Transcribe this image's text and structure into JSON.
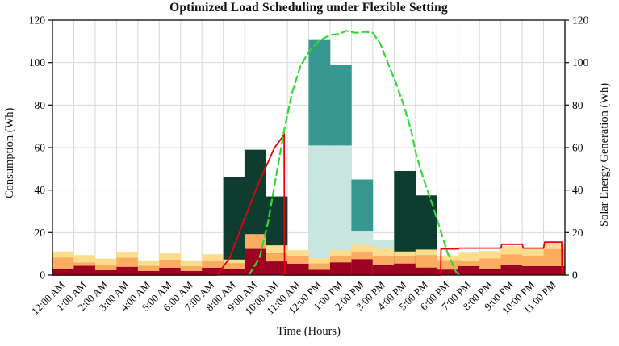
{
  "title": "Optimized Load Scheduling under Flexible Setting",
  "axes": {
    "left_label": "Consumption (Wh)",
    "right_label": "Solar Energy Generation (Wh)",
    "x_label": "Time (Hours)",
    "y_ticks": [
      0,
      20,
      40,
      60,
      80,
      100,
      120
    ],
    "y_range": [
      0,
      120
    ],
    "grid": true
  },
  "colors": {
    "base_load_red": "#9e0022",
    "load_orange": "#fbac60",
    "load_yellow": "#fddc8c",
    "appliance_dark_green": "#0e3d30",
    "appliance_teal": "#399792",
    "appliance_pale_teal": "#c9e5e0",
    "solar_line_green": "#2edc30",
    "grid_line_red": "#e8000d",
    "gridline_gray": "#d8d8d8",
    "frame_black": "#1a1a1a"
  },
  "chart_data": {
    "type": "bar",
    "subtype": "stacked-bars-with-two-lines",
    "title": "Optimized Load Scheduling under Flexible Setting",
    "xlabel": "Time (Hours)",
    "ylabel_left": "Consumption (Wh)",
    "ylabel_right": "Solar Energy Generation (Wh)",
    "ylim": [
      0,
      120
    ],
    "categories": [
      "12:00 AM",
      "1:00 AM",
      "2:00 AM",
      "3:00 AM",
      "4:00 AM",
      "5:00 AM",
      "6:00 AM",
      "7:00 AM",
      "8:00 AM",
      "9:00 AM",
      "10:00 AM",
      "11:00 AM",
      "12:00 PM",
      "1:00 PM",
      "2:00 PM",
      "3:00 PM",
      "4:00 PM",
      "5:00 PM",
      "6:00 PM",
      "7:00 PM",
      "8:00 PM",
      "9:00 PM",
      "10:00 PM",
      "11:00 PM"
    ],
    "bars_cumulative_tops_wh": {
      "note": "cumulative top value (Wh) of each stacked segment per hour; background appliance bars rise from 0 behind the small red/orange/yellow stack",
      "red": [
        3.0,
        4.4,
        2.3,
        3.9,
        1.9,
        3.5,
        1.9,
        3.5,
        2.9,
        12.3,
        6.4,
        5.4,
        2.5,
        6.0,
        7.5,
        5.0,
        5.4,
        3.5,
        2.6,
        4.2,
        2.9,
        5.0,
        4.2,
        4.2
      ],
      "orange": [
        8.3,
        6.0,
        4.8,
        8.2,
        4.4,
        7.3,
        4.2,
        6.7,
        5.4,
        19.3,
        10.2,
        9.2,
        5.5,
        9.2,
        11.1,
        9.0,
        8.6,
        9.2,
        7.1,
        6.7,
        7.9,
        9.8,
        9.2,
        12.3
      ],
      "yellow": [
        11.1,
        9.4,
        7.7,
        10.7,
        6.9,
        10.2,
        6.9,
        9.8,
        7.3,
        19.3,
        14.0,
        11.7,
        8.0,
        11.7,
        14.2,
        12.3,
        11.1,
        12.0,
        9.2,
        10.5,
        11.3,
        13.6,
        12.3,
        14.9
      ],
      "pale_teal": [
        0,
        0,
        0,
        0,
        0,
        0,
        0,
        0,
        0,
        0,
        0,
        0,
        61,
        61,
        20.5,
        16.7,
        0,
        0,
        0,
        0,
        0,
        0,
        0,
        0
      ],
      "teal": [
        0,
        0,
        0,
        0,
        0,
        0,
        0,
        0,
        0,
        0,
        0,
        0,
        111,
        99,
        45,
        0,
        0,
        0,
        0,
        0,
        0,
        0,
        0,
        0
      ],
      "dark_green": [
        0,
        0,
        0,
        0,
        0,
        0,
        0,
        0,
        46,
        59,
        37,
        0,
        0,
        0,
        0,
        0,
        49,
        37.5,
        0,
        0,
        0,
        0,
        0,
        0
      ]
    },
    "lines": {
      "solar_generation_dashed_green": {
        "units": "t = hours from 12:00 AM (slot units), v = Wh",
        "points": [
          [
            9.2,
            0
          ],
          [
            9.7,
            8
          ],
          [
            10.1,
            25
          ],
          [
            10.5,
            48
          ],
          [
            10.85,
            68
          ],
          [
            11.2,
            85
          ],
          [
            11.6,
            98
          ],
          [
            12.0,
            105
          ],
          [
            12.45,
            110
          ],
          [
            13.0,
            113
          ],
          [
            13.45,
            113.5
          ],
          [
            13.75,
            115
          ],
          [
            14.2,
            114
          ],
          [
            14.65,
            114.5
          ],
          [
            15.0,
            114
          ],
          [
            15.35,
            109
          ],
          [
            15.7,
            100
          ],
          [
            16.1,
            90
          ],
          [
            16.45,
            80
          ],
          [
            16.8,
            68
          ],
          [
            17.05,
            56
          ],
          [
            17.4,
            44.5
          ],
          [
            17.8,
            33
          ],
          [
            18.15,
            21.8
          ],
          [
            18.5,
            10.5
          ],
          [
            18.9,
            1.5
          ],
          [
            19.05,
            0
          ]
        ]
      },
      "solid_red": {
        "units": "t = hours from 12:00 AM (slot units), v = Wh",
        "points": [
          [
            0,
            0
          ],
          [
            7.7,
            0
          ],
          [
            8.3,
            8
          ],
          [
            8.9,
            24
          ],
          [
            9.6,
            42
          ],
          [
            10.4,
            60
          ],
          [
            10.85,
            66
          ],
          [
            10.87,
            0
          ],
          [
            18.18,
            0
          ],
          [
            18.2,
            12.3
          ],
          [
            19.0,
            12.3
          ],
          [
            19.05,
            12.7
          ],
          [
            21.0,
            12.7
          ],
          [
            21.05,
            14.5
          ],
          [
            22.0,
            14.5
          ],
          [
            22.05,
            12.7
          ],
          [
            23.0,
            12.7
          ],
          [
            23.05,
            15.5
          ],
          [
            23.85,
            15.5
          ],
          [
            23.87,
            0
          ]
        ]
      }
    },
    "legend": "none visible"
  }
}
